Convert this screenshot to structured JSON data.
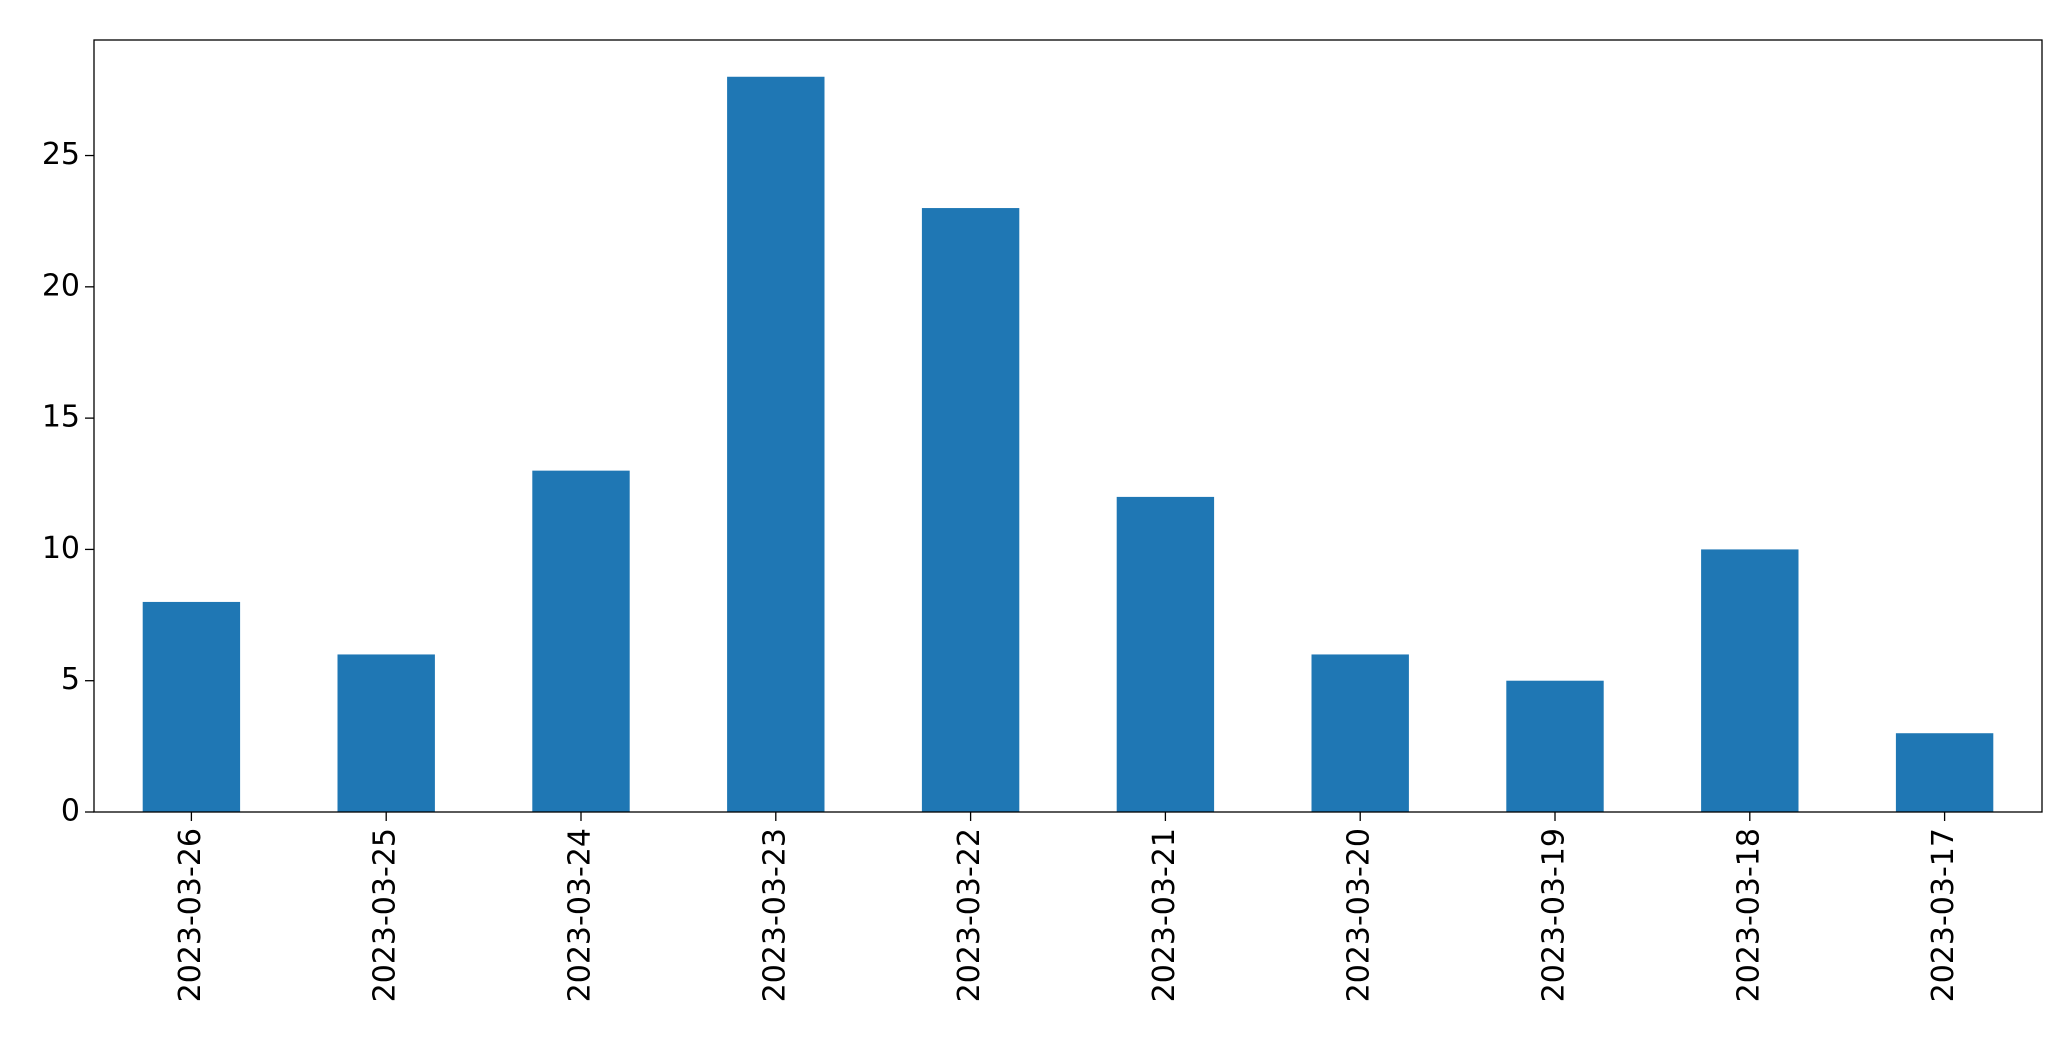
{
  "chart_data": {
    "type": "bar",
    "categories": [
      "2023-03-26",
      "2023-03-25",
      "2023-03-24",
      "2023-03-23",
      "2023-03-22",
      "2023-03-21",
      "2023-03-20",
      "2023-03-19",
      "2023-03-18",
      "2023-03-17"
    ],
    "values": [
      8,
      6,
      13,
      28,
      23,
      12,
      6,
      5,
      10,
      3
    ],
    "color": "#1f77b4",
    "ylim": [
      0,
      29.4
    ],
    "yticks": [
      0,
      5,
      10,
      15,
      20,
      25
    ],
    "grid": false
  }
}
